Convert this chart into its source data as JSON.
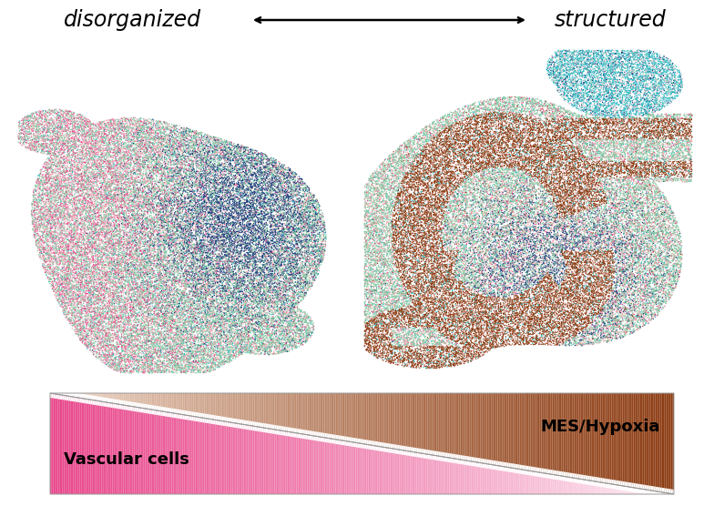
{
  "title_left": "disorganized",
  "title_right": "structured",
  "legend_label_left": "Vascular cells",
  "legend_label_right": "MES/Hypoxia",
  "bg_color": "#ffffff",
  "colors": {
    "pink": "#E8458A",
    "salmon": "#F0A0A0",
    "green": "#7EC8A0",
    "blue": "#1A3A7A",
    "cyan": "#30C0C8",
    "brown": "#8B3A10",
    "light_pink": "#F0B8C8",
    "teal": "#20A8B8"
  },
  "fig_width": 7.84,
  "fig_height": 5.56,
  "dpi": 100
}
